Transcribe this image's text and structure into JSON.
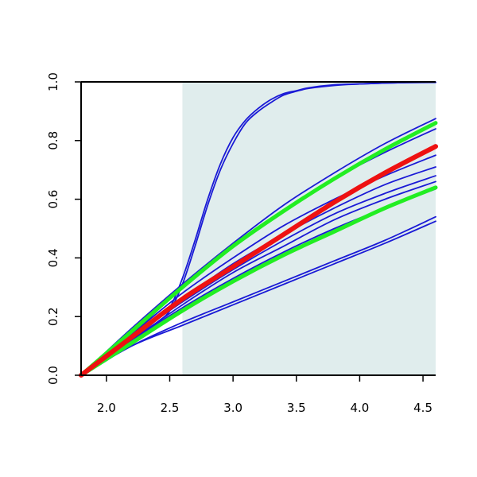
{
  "chart_data": {
    "type": "line",
    "title": "",
    "xlabel": "",
    "ylabel": "",
    "xlim": [
      1.8,
      4.6
    ],
    "ylim": [
      0.0,
      1.0
    ],
    "x_ticks": [
      2.0,
      2.5,
      3.0,
      3.5,
      4.0,
      4.5
    ],
    "y_ticks": [
      0.0,
      0.2,
      0.4,
      0.6,
      0.8,
      1.0
    ],
    "grid": false,
    "legend": "none",
    "shaded_region": {
      "x_from": 2.6,
      "x_to": 4.6,
      "color": "#e0eded"
    },
    "colors": {
      "ensemble": "#1a1ad6",
      "band": "#22ee22",
      "central": "#ee1111"
    },
    "series": [
      {
        "role": "ensemble",
        "x": [
          1.8,
          2.0,
          2.2,
          2.4,
          2.5,
          2.6,
          2.7,
          2.8,
          2.9,
          3.0,
          3.1,
          3.2,
          3.3,
          3.4,
          3.5,
          3.6,
          3.8,
          4.0,
          4.3,
          4.6
        ],
        "y": [
          0.0,
          0.06,
          0.12,
          0.19,
          0.23,
          0.33,
          0.46,
          0.6,
          0.72,
          0.81,
          0.87,
          0.91,
          0.94,
          0.96,
          0.97,
          0.98,
          0.99,
          0.993,
          0.997,
          0.998
        ]
      },
      {
        "role": "ensemble",
        "x": [
          1.8,
          2.0,
          2.2,
          2.4,
          2.5,
          2.6,
          2.7,
          2.8,
          2.9,
          3.0,
          3.1,
          3.2,
          3.3,
          3.4,
          3.5,
          3.6,
          3.8,
          4.0,
          4.3,
          4.6
        ],
        "y": [
          0.0,
          0.05,
          0.11,
          0.18,
          0.22,
          0.31,
          0.44,
          0.58,
          0.7,
          0.79,
          0.86,
          0.9,
          0.93,
          0.955,
          0.968,
          0.978,
          0.988,
          0.993,
          0.997,
          0.999
        ]
      },
      {
        "role": "ensemble",
        "x": [
          1.8,
          2.2,
          2.6,
          3.0,
          3.4,
          3.8,
          4.2,
          4.6
        ],
        "y": [
          0.0,
          0.16,
          0.31,
          0.45,
          0.58,
          0.69,
          0.79,
          0.875
        ]
      },
      {
        "role": "ensemble",
        "x": [
          1.8,
          2.2,
          2.6,
          3.0,
          3.4,
          3.8,
          4.2,
          4.6
        ],
        "y": [
          0.0,
          0.14,
          0.3,
          0.44,
          0.56,
          0.67,
          0.76,
          0.84
        ]
      },
      {
        "role": "ensemble",
        "x": [
          1.8,
          2.2,
          2.6,
          3.0,
          3.4,
          3.8,
          4.2,
          4.6
        ],
        "y": [
          0.0,
          0.14,
          0.28,
          0.4,
          0.51,
          0.6,
          0.68,
          0.75
        ]
      },
      {
        "role": "ensemble",
        "x": [
          1.8,
          2.2,
          2.6,
          3.0,
          3.4,
          3.8,
          4.2,
          4.6
        ],
        "y": [
          0.0,
          0.13,
          0.26,
          0.38,
          0.48,
          0.57,
          0.65,
          0.71
        ]
      },
      {
        "role": "ensemble",
        "x": [
          1.8,
          2.2,
          2.6,
          3.0,
          3.4,
          3.8,
          4.2,
          4.6
        ],
        "y": [
          0.0,
          0.13,
          0.25,
          0.36,
          0.46,
          0.55,
          0.62,
          0.68
        ]
      },
      {
        "role": "ensemble",
        "x": [
          1.8,
          2.2,
          2.6,
          3.0,
          3.4,
          3.8,
          4.2,
          4.6
        ],
        "y": [
          0.0,
          0.12,
          0.24,
          0.35,
          0.44,
          0.53,
          0.6,
          0.66
        ]
      },
      {
        "role": "ensemble",
        "x": [
          1.8,
          2.2,
          2.6,
          3.0,
          3.4,
          3.8,
          4.2,
          4.6
        ],
        "y": [
          0.0,
          0.12,
          0.23,
          0.33,
          0.42,
          0.5,
          0.57,
          0.635
        ]
      },
      {
        "role": "ensemble",
        "x": [
          1.8,
          2.2,
          2.6,
          3.0,
          3.4,
          3.8,
          4.2,
          4.6
        ],
        "y": [
          0.0,
          0.1,
          0.18,
          0.25,
          0.32,
          0.39,
          0.46,
          0.54
        ]
      },
      {
        "role": "ensemble",
        "x": [
          1.8,
          2.2,
          2.6,
          3.0,
          3.4,
          3.8,
          4.2,
          4.6
        ],
        "y": [
          0.0,
          0.1,
          0.17,
          0.24,
          0.31,
          0.38,
          0.45,
          0.525
        ]
      },
      {
        "role": "band",
        "x": [
          1.8,
          2.2,
          2.6,
          3.0,
          3.4,
          3.8,
          4.2,
          4.6
        ],
        "y": [
          0.0,
          0.15,
          0.3,
          0.44,
          0.56,
          0.67,
          0.77,
          0.86
        ]
      },
      {
        "role": "band",
        "x": [
          1.8,
          2.2,
          2.6,
          3.0,
          3.4,
          3.8,
          4.2,
          4.6
        ],
        "y": [
          0.0,
          0.11,
          0.22,
          0.32,
          0.41,
          0.49,
          0.57,
          0.64
        ]
      },
      {
        "role": "central",
        "x": [
          1.8,
          2.2,
          2.6,
          3.0,
          3.4,
          3.8,
          4.2,
          4.6
        ],
        "y": [
          0.0,
          0.13,
          0.26,
          0.37,
          0.48,
          0.59,
          0.69,
          0.78
        ]
      }
    ]
  }
}
